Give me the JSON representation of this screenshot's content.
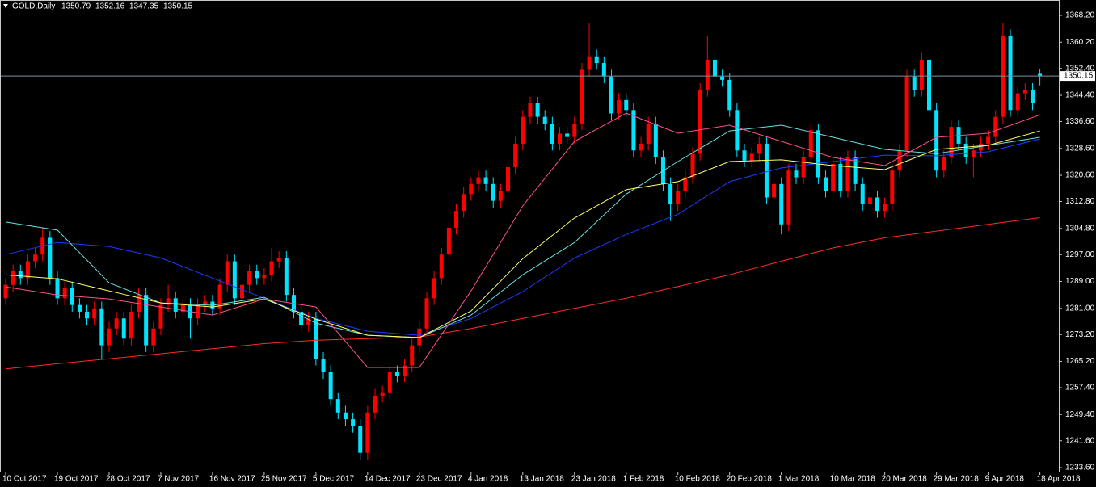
{
  "chart_data": {
    "type": "candlestick",
    "title": "GOLD,Daily",
    "up_color": "#ff0000",
    "down_color": "#00e5ff",
    "price_line_color": "#7f8fa0",
    "categories": [
      "10 Oct 2017",
      null,
      null,
      null,
      null,
      null,
      null,
      "19 Oct 2017",
      null,
      null,
      null,
      null,
      null,
      null,
      "28 Oct 2017",
      null,
      null,
      null,
      null,
      null,
      null,
      "7 Nov 2017",
      null,
      null,
      null,
      null,
      null,
      null,
      "16 Nov 2017",
      null,
      null,
      null,
      null,
      null,
      null,
      "25 Nov 2017",
      null,
      null,
      null,
      null,
      null,
      null,
      "5 Dec 2017",
      null,
      null,
      null,
      null,
      null,
      null,
      "14 Dec 2017",
      null,
      null,
      null,
      null,
      null,
      null,
      "23 Dec 2017",
      null,
      null,
      null,
      null,
      null,
      null,
      "4 Jan 2018",
      null,
      null,
      null,
      null,
      null,
      null,
      "13 Jan 2018",
      null,
      null,
      null,
      null,
      null,
      null,
      "23 Jan 2018",
      null,
      null,
      null,
      null,
      null,
      null,
      "1 Feb 2018",
      null,
      null,
      null,
      null,
      null,
      null,
      "10 Feb 2018",
      null,
      null,
      null,
      null,
      null,
      null,
      "20 Feb 2018",
      null,
      null,
      null,
      null,
      null,
      null,
      "1 Mar 2018",
      null,
      null,
      null,
      null,
      null,
      null,
      "10 Mar 2018",
      null,
      null,
      null,
      null,
      null,
      null,
      "20 Mar 2018",
      null,
      null,
      null,
      null,
      null,
      null,
      "29 Mar 2018",
      null,
      null,
      null,
      null,
      null,
      null,
      "9 Apr 2018",
      null,
      null,
      null,
      null,
      null,
      null,
      "18 Apr 2018"
    ],
    "open": [
      1284,
      1288,
      1292,
      1290,
      1295,
      1297,
      1302,
      1290,
      1284,
      1287,
      1282,
      1280,
      1278,
      1281,
      1270,
      1275,
      1278,
      1272,
      1280,
      1285,
      1270,
      1275,
      1282,
      1284,
      1280,
      1282,
      1278,
      1282,
      1283,
      1281,
      1288,
      1295,
      1284,
      1288,
      1292,
      1290,
      1291,
      1295,
      1296,
      1285,
      1280,
      1276,
      1278,
      1266,
      1262,
      1254,
      1250,
      1248,
      1246,
      1238,
      1250,
      1255,
      1256,
      1262,
      1261,
      1264,
      1270,
      1275,
      1284,
      1290,
      1297,
      1305,
      1310,
      1315,
      1318,
      1320,
      1318,
      1313,
      1316,
      1323,
      1330,
      1338,
      1342,
      1338,
      1336,
      1330,
      1333,
      1332,
      1336,
      1352,
      1356,
      1354,
      1350,
      1339,
      1343,
      1340,
      1328,
      1330,
      1336,
      1326,
      1318,
      1312,
      1316,
      1320,
      1327,
      1346,
      1355,
      1350,
      1349,
      1340,
      1328,
      1325,
      1327,
      1330,
      1314,
      1318,
      1306,
      1322,
      1320,
      1326,
      1334,
      1320,
      1316,
      1324,
      1316,
      1326,
      1318,
      1312,
      1314,
      1310,
      1312,
      1322,
      1328,
      1350,
      1346,
      1355,
      1340,
      1322,
      1326,
      1335,
      1330,
      1326,
      1328,
      1330,
      1332,
      1338,
      1362,
      1340,
      1345,
      1346,
      1350.79
    ],
    "high": [
      1290,
      1294,
      1294,
      1297,
      1299,
      1305,
      1304,
      1292,
      1289,
      1289,
      1284,
      1282,
      1283,
      1283,
      1277,
      1280,
      1280,
      1282,
      1287,
      1287,
      1277,
      1284,
      1288,
      1286,
      1284,
      1284,
      1284,
      1285,
      1285,
      1290,
      1297,
      1297,
      1290,
      1294,
      1294,
      1293,
      1299,
      1298,
      1298,
      1287,
      1282,
      1280,
      1280,
      1268,
      1264,
      1256,
      1252,
      1250,
      1248,
      1252,
      1257,
      1258,
      1264,
      1264,
      1266,
      1272,
      1277,
      1286,
      1292,
      1299,
      1307,
      1312,
      1317,
      1320,
      1322,
      1322,
      1320,
      1318,
      1325,
      1332,
      1340,
      1344,
      1344,
      1340,
      1338,
      1335,
      1335,
      1338,
      1354,
      1366,
      1358,
      1356,
      1352,
      1345,
      1345,
      1342,
      1332,
      1338,
      1338,
      1328,
      1320,
      1318,
      1322,
      1329,
      1348,
      1362,
      1357,
      1352,
      1351,
      1342,
      1330,
      1329,
      1332,
      1332,
      1320,
      1320,
      1324,
      1324,
      1328,
      1336,
      1336,
      1322,
      1326,
      1326,
      1328,
      1328,
      1320,
      1316,
      1316,
      1314,
      1324,
      1330,
      1352,
      1352,
      1357,
      1357,
      1342,
      1328,
      1337,
      1337,
      1332,
      1330,
      1332,
      1334,
      1340,
      1366,
      1364,
      1347,
      1348,
      1348,
      1352.16
    ],
    "low": [
      1282,
      1286,
      1288,
      1288,
      1293,
      1295,
      1288,
      1282,
      1282,
      1280,
      1278,
      1276,
      1276,
      1266,
      1268,
      1273,
      1270,
      1270,
      1278,
      1268,
      1268,
      1273,
      1280,
      1278,
      1278,
      1272,
      1276,
      1280,
      1279,
      1279,
      1286,
      1282,
      1282,
      1286,
      1288,
      1288,
      1289,
      1293,
      1283,
      1278,
      1274,
      1274,
      1264,
      1260,
      1252,
      1248,
      1246,
      1244,
      1236,
      1236,
      1248,
      1253,
      1254,
      1259,
      1259,
      1262,
      1268,
      1273,
      1282,
      1288,
      1295,
      1303,
      1308,
      1313,
      1316,
      1316,
      1311,
      1311,
      1314,
      1321,
      1328,
      1336,
      1336,
      1334,
      1328,
      1328,
      1330,
      1330,
      1334,
      1350,
      1352,
      1348,
      1337,
      1337,
      1338,
      1326,
      1326,
      1328,
      1324,
      1316,
      1307,
      1310,
      1314,
      1318,
      1325,
      1344,
      1348,
      1347,
      1338,
      1326,
      1323,
      1323,
      1325,
      1312,
      1312,
      1303,
      1304,
      1318,
      1318,
      1324,
      1318,
      1314,
      1314,
      1314,
      1314,
      1316,
      1310,
      1310,
      1308,
      1308,
      1310,
      1320,
      1326,
      1344,
      1344,
      1338,
      1320,
      1320,
      1324,
      1328,
      1324,
      1320,
      1326,
      1328,
      1330,
      1336,
      1338,
      1338,
      1343,
      1340,
      1347.35
    ],
    "close": [
      1288,
      1292,
      1290,
      1295,
      1297,
      1302,
      1290,
      1284,
      1287,
      1282,
      1280,
      1278,
      1281,
      1270,
      1275,
      1278,
      1272,
      1280,
      1285,
      1270,
      1275,
      1282,
      1284,
      1280,
      1282,
      1278,
      1282,
      1283,
      1281,
      1288,
      1295,
      1284,
      1288,
      1292,
      1290,
      1291,
      1295,
      1296,
      1285,
      1280,
      1276,
      1278,
      1266,
      1262,
      1254,
      1250,
      1248,
      1246,
      1238,
      1250,
      1255,
      1256,
      1262,
      1261,
      1264,
      1270,
      1275,
      1284,
      1290,
      1297,
      1305,
      1310,
      1315,
      1318,
      1320,
      1318,
      1313,
      1316,
      1323,
      1330,
      1338,
      1342,
      1338,
      1336,
      1330,
      1333,
      1332,
      1336,
      1352,
      1356,
      1354,
      1350,
      1339,
      1343,
      1340,
      1328,
      1330,
      1336,
      1326,
      1318,
      1312,
      1316,
      1320,
      1327,
      1346,
      1355,
      1350,
      1349,
      1340,
      1328,
      1325,
      1327,
      1330,
      1314,
      1318,
      1306,
      1322,
      1320,
      1326,
      1334,
      1320,
      1316,
      1324,
      1316,
      1326,
      1318,
      1312,
      1314,
      1310,
      1312,
      1322,
      1328,
      1350,
      1346,
      1355,
      1340,
      1322,
      1326,
      1335,
      1330,
      1326,
      1328,
      1330,
      1332,
      1338,
      1362,
      1340,
      1345,
      1346,
      1342,
      1350.15
    ],
    "lines": [
      {
        "color": "#ff2a2a",
        "x": [
          "10 Oct 2017",
          "19 Oct 2017",
          "28 Oct 2017",
          "7 Nov 2017",
          "16 Nov 2017",
          "25 Nov 2017",
          "5 Dec 2017",
          "14 Dec 2017",
          "23 Dec 2017",
          "4 Jan 2018",
          "13 Jan 2018",
          "23 Jan 2018",
          "1 Feb 2018",
          "10 Feb 2018",
          "20 Feb 2018",
          "1 Mar 2018",
          "10 Mar 2018",
          "20 Mar 2018",
          "29 Mar 2018",
          "9 Apr 2018",
          "18 Apr 2018"
        ],
        "values": [
          1263,
          1264.5,
          1266,
          1267.5,
          1269,
          1270.5,
          1271.5,
          1272,
          1272.5,
          1275,
          1278,
          1281,
          1284,
          1287.5,
          1291,
          1295,
          1299,
          1302,
          1304,
          1306,
          1308
        ]
      },
      {
        "color": "#1e3cff",
        "x": [
          "10 Oct 2017",
          "19 Oct 2017",
          "28 Oct 2017",
          "7 Nov 2017",
          "16 Nov 2017",
          "25 Nov 2017",
          "5 Dec 2017",
          "14 Dec 2017",
          "23 Dec 2017",
          "4 Jan 2018",
          "13 Jan 2018",
          "23 Jan 2018",
          "1 Feb 2018",
          "10 Feb 2018",
          "20 Feb 2018",
          "1 Mar 2018",
          "10 Mar 2018",
          "20 Mar 2018",
          "29 Mar 2018",
          "9 Apr 2018",
          "18 Apr 2018"
        ],
        "values": [
          1297,
          1300.6,
          1299.4,
          1296,
          1290,
          1284,
          1278,
          1274.2,
          1273,
          1278,
          1286,
          1296,
          1303,
          1309,
          1318.7,
          1322.8,
          1324.7,
          1326.6,
          1326.4,
          1327.6,
          1331.4
        ]
      },
      {
        "color": "#66e0e0",
        "x": [
          "10 Oct 2017",
          "19 Oct 2017",
          "28 Oct 2017",
          "7 Nov 2017",
          "16 Nov 2017",
          "25 Nov 2017",
          "5 Dec 2017",
          "14 Dec 2017",
          "23 Dec 2017",
          "4 Jan 2018",
          "13 Jan 2018",
          "23 Jan 2018",
          "1 Feb 2018",
          "10 Feb 2018",
          "20 Feb 2018",
          "1 Mar 2018",
          "10 Mar 2018",
          "20 Mar 2018",
          "29 Mar 2018",
          "9 Apr 2018",
          "18 Apr 2018"
        ],
        "values": [
          1306.7,
          1304.3,
          1288.6,
          1282.6,
          1281.9,
          1284.3,
          1276.6,
          1273,
          1272.3,
          1279,
          1291,
          1300.6,
          1315,
          1324.7,
          1333.8,
          1335.5,
          1331.9,
          1328.3,
          1327,
          1329.5,
          1331.9
        ]
      },
      {
        "color": "#ffff66",
        "x": [
          "10 Oct 2017",
          "19 Oct 2017",
          "28 Oct 2017",
          "7 Nov 2017",
          "16 Nov 2017",
          "25 Nov 2017",
          "5 Dec 2017",
          "14 Dec 2017",
          "23 Dec 2017",
          "4 Jan 2018",
          "13 Jan 2018",
          "23 Jan 2018",
          "1 Feb 2018",
          "10 Feb 2018",
          "20 Feb 2018",
          "1 Mar 2018",
          "10 Mar 2018",
          "20 Mar 2018",
          "29 Mar 2018",
          "9 Apr 2018",
          "18 Apr 2018"
        ],
        "values": [
          1291,
          1289.8,
          1286.2,
          1282.6,
          1281.4,
          1283.8,
          1277.8,
          1273,
          1272.3,
          1280.2,
          1295.8,
          1307.9,
          1316.3,
          1318.7,
          1324.7,
          1325.2,
          1323.5,
          1322.3,
          1328.3,
          1329.5,
          1333.8
        ]
      },
      {
        "color": "#ff4f8b",
        "x": [
          "10 Oct 2017",
          "19 Oct 2017",
          "28 Oct 2017",
          "7 Nov 2017",
          "16 Nov 2017",
          "25 Nov 2017",
          "5 Dec 2017",
          "14 Dec 2017",
          "23 Dec 2017",
          "4 Jan 2018",
          "13 Jan 2018",
          "23 Jan 2018",
          "1 Feb 2018",
          "10 Feb 2018",
          "20 Feb 2018",
          "1 Mar 2018",
          "10 Mar 2018",
          "20 Mar 2018",
          "29 Mar 2018",
          "9 Apr 2018",
          "18 Apr 2018"
        ],
        "values": [
          1287.4,
          1285,
          1283.8,
          1281.4,
          1279,
          1283.8,
          1281.4,
          1263.4,
          1263.4,
          1286.2,
          1311.5,
          1330.7,
          1339.1,
          1333.1,
          1335.5,
          1330.7,
          1325.9,
          1323.5,
          1331.9,
          1333.1,
          1338.6
        ]
      }
    ],
    "ylim": [
      1233.6,
      1368.2
    ],
    "yticks": [
      {
        "value": 1368.2,
        "label": "1368.20"
      },
      {
        "value": 1360.2,
        "label": "1360.20"
      },
      {
        "value": 1352.4,
        "label": "1352.40"
      },
      {
        "value": 1344.4,
        "label": "1344.40"
      },
      {
        "value": 1336.6,
        "label": "1336.60"
      },
      {
        "value": 1328.6,
        "label": "1328.60"
      },
      {
        "value": 1320.6,
        "label": "1320.60"
      },
      {
        "value": 1312.8,
        "label": "1312.80"
      },
      {
        "value": 1304.8,
        "label": "1304.80"
      },
      {
        "value": 1297,
        "label": "1297.00"
      },
      {
        "value": 1289,
        "label": "1289.00"
      },
      {
        "value": 1281,
        "label": "1281.00"
      },
      {
        "value": 1273.2,
        "label": "1273.20"
      },
      {
        "value": 1265.2,
        "label": "1265.20"
      },
      {
        "value": 1257.4,
        "label": "1257.40"
      },
      {
        "value": 1249.4,
        "label": "1249.40"
      },
      {
        "value": 1241.6,
        "label": "1241.60"
      },
      {
        "value": 1233.6,
        "label": "1233.60"
      }
    ]
  }
}
